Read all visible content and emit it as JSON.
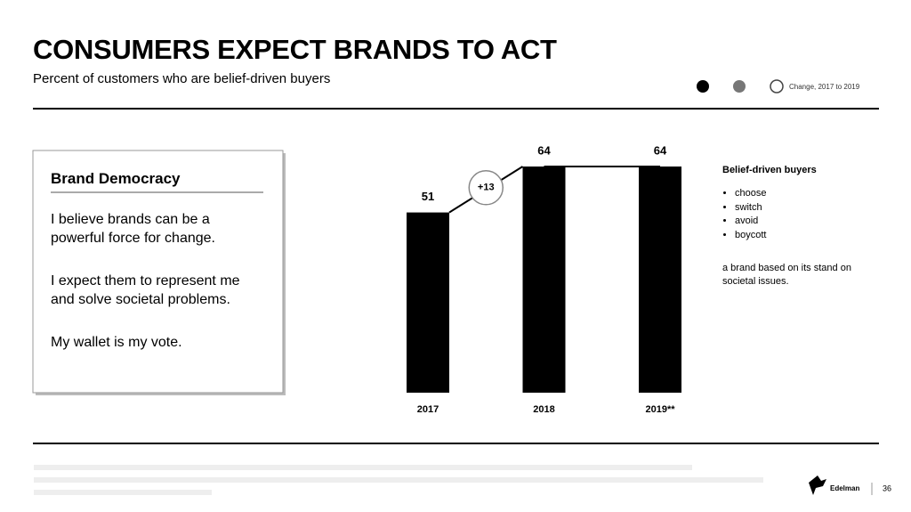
{
  "header": {
    "title": "CONSUMERS EXPECT BRANDS TO ACT",
    "subtitle": "Percent of customers who are belief-driven buyers",
    "legend_label": "Change, 2017 to 2019"
  },
  "quote_box": {
    "heading": "Brand Democracy",
    "paragraphs": [
      "I believe brands can be a powerful force for change.",
      "I expect them to represent me and solve societal problems.",
      "My wallet is my vote."
    ]
  },
  "chart_data": {
    "type": "bar",
    "categories": [
      "2017",
      "2018",
      "2019**"
    ],
    "values": [
      51,
      64,
      64
    ],
    "color": "#000000",
    "annotations": [
      "+13"
    ]
  },
  "notes": {
    "heading": "Belief-driven buyers",
    "bullets": [
      "choose",
      "switch",
      "avoid",
      "boycott"
    ],
    "text": "a brand based on its stand on societal issues."
  },
  "footer": {
    "logo": "Edelman",
    "page": "36"
  }
}
